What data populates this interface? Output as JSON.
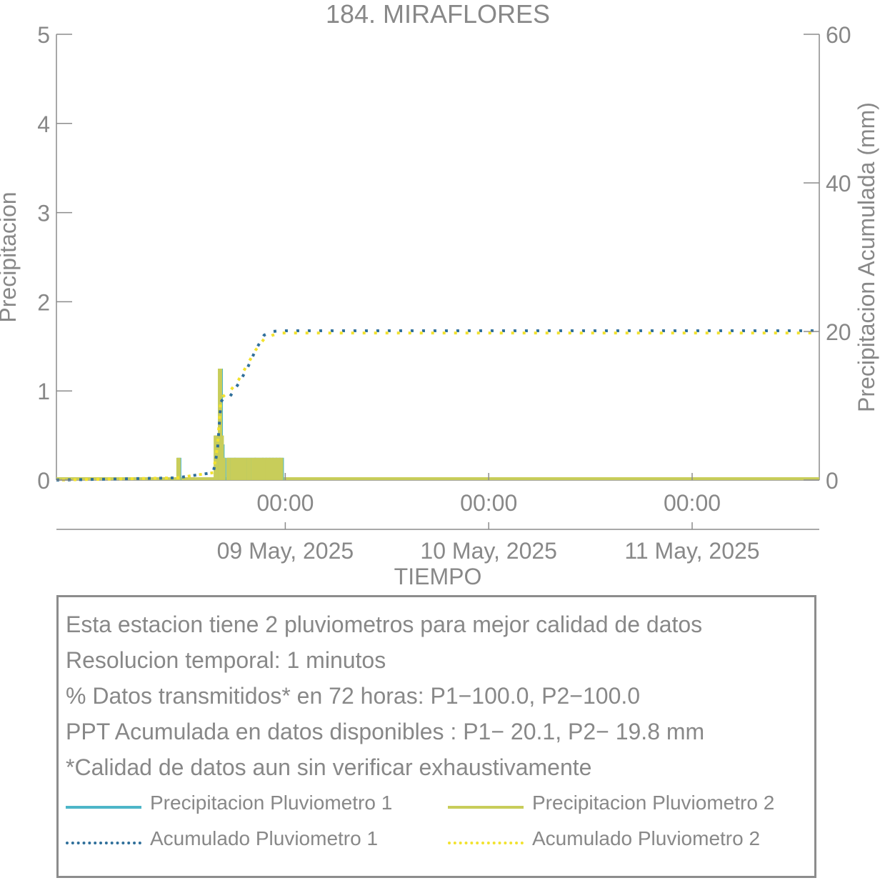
{
  "chart_data": {
    "type": "bar+line",
    "title": "184. MIRAFLORES",
    "xlabel": "TIEMPO",
    "ylabel_left": "Precipitacion",
    "ylabel_right": "Precipitacion Acumulada (mm)",
    "ylim_left": [
      0,
      5
    ],
    "yticks_left": [
      0,
      1,
      2,
      3,
      4,
      5
    ],
    "ylim_right": [
      0,
      60
    ],
    "yticks_right": [
      0,
      20,
      40,
      60
    ],
    "x_range_hours": [
      -27,
      63
    ],
    "x_ticks": [
      {
        "hours": 0,
        "time": "00:00",
        "date": "09 May, 2025"
      },
      {
        "hours": 24,
        "time": "00:00",
        "date": "10 May, 2025"
      },
      {
        "hours": 48,
        "time": "00:00",
        "date": "11 May, 2025"
      }
    ],
    "grid": false,
    "series": [
      {
        "name": "Precipitacion Pluviometro 1",
        "axis": "left",
        "style": "bar",
        "color": "#4db6c8",
        "points": [
          [
            -12.6,
            0.25
          ],
          [
            -8.2,
            0.5
          ],
          [
            -7.7,
            1.25
          ],
          [
            -7.5,
            0.4
          ],
          [
            -7.3,
            0.25
          ],
          [
            -6.7,
            0.25
          ],
          [
            -6.2,
            0.25
          ],
          [
            -5.8,
            0.25
          ],
          [
            -5.3,
            0.25
          ],
          [
            -4.8,
            0.25
          ],
          [
            -4.3,
            0.25
          ],
          [
            -3.8,
            0.25
          ],
          [
            -3.4,
            0.25
          ],
          [
            -2.9,
            0.25
          ],
          [
            -2.5,
            0.25
          ],
          [
            -2.1,
            0.25
          ],
          [
            -1.7,
            0.25
          ],
          [
            -1.3,
            0.25
          ],
          [
            -0.9,
            0.25
          ],
          [
            -0.5,
            0.25
          ]
        ]
      },
      {
        "name": "Precipitacion Pluviometro 2",
        "axis": "left",
        "style": "bar",
        "color": "#c8cd5a",
        "points": [
          [
            -12.6,
            0.25
          ],
          [
            -8.2,
            0.5
          ],
          [
            -7.7,
            1.25
          ],
          [
            -7.5,
            0.5
          ],
          [
            -7.3,
            0.25
          ],
          [
            -6.7,
            0.25
          ],
          [
            -6.2,
            0.25
          ],
          [
            -5.8,
            0.25
          ],
          [
            -5.3,
            0.25
          ],
          [
            -4.8,
            0.25
          ],
          [
            -4.3,
            0.25
          ],
          [
            -3.8,
            0.25
          ],
          [
            -3.4,
            0.25
          ],
          [
            -2.9,
            0.25
          ],
          [
            -2.5,
            0.25
          ],
          [
            -2.1,
            0.25
          ],
          [
            -1.7,
            0.25
          ],
          [
            -1.3,
            0.25
          ],
          [
            -0.9,
            0.25
          ],
          [
            -0.5,
            0.25
          ]
        ]
      },
      {
        "name": "Acumulado Pluviometro 1",
        "axis": "right",
        "style": "dotted",
        "color": "#2f6f9a",
        "x": [
          -27,
          -12.8,
          -8.5,
          -8.0,
          -7.6,
          -7.3,
          -6.5,
          -5.5,
          -4.5,
          -3.5,
          -2.5,
          -1.5,
          -0.5,
          0.5,
          2,
          63
        ],
        "y": [
          0,
          0.3,
          1.0,
          4.0,
          10.5,
          11.0,
          11.3,
          13.0,
          15.0,
          17.5,
          19.5,
          20.0,
          20.1,
          20.1,
          20.1,
          20.1
        ]
      },
      {
        "name": "Acumulado Pluviometro 2",
        "axis": "right",
        "style": "dotted",
        "color": "#f2e22e",
        "x": [
          -27,
          -12.8,
          -8.5,
          -8.0,
          -7.6,
          -7.3,
          -6.5,
          -5.5,
          -4.5,
          -3.5,
          -2.5,
          -1.5,
          -0.5,
          0.5,
          2,
          63
        ],
        "y": [
          0,
          0.3,
          1.0,
          4.5,
          11.0,
          11.3,
          12.0,
          13.5,
          15.5,
          17.5,
          19.0,
          19.5,
          19.8,
          19.8,
          19.8,
          19.8
        ]
      }
    ]
  },
  "info": {
    "lines": [
      "Esta estacion tiene 2 pluviometros para mejor calidad de datos",
      "Resolucion temporal: 1 minutos",
      "% Datos transmitidos* en 72 horas: P1−100.0, P2−100.0",
      "PPT Acumulada en datos disponibles : P1− 20.1, P2− 19.8 mm",
      "*Calidad de datos aun sin verificar exhaustivamente"
    ]
  },
  "legend": [
    {
      "label": "Precipitacion Pluviometro 1",
      "color": "#4db6c8",
      "style": "solid"
    },
    {
      "label": "Precipitacion Pluviometro 2",
      "color": "#c8cd5a",
      "style": "solid"
    },
    {
      "label": "Acumulado Pluviometro 1",
      "color": "#2f6f9a",
      "style": "dotted"
    },
    {
      "label": "Acumulado Pluviometro 2",
      "color": "#f2e22e",
      "style": "dotted"
    }
  ]
}
